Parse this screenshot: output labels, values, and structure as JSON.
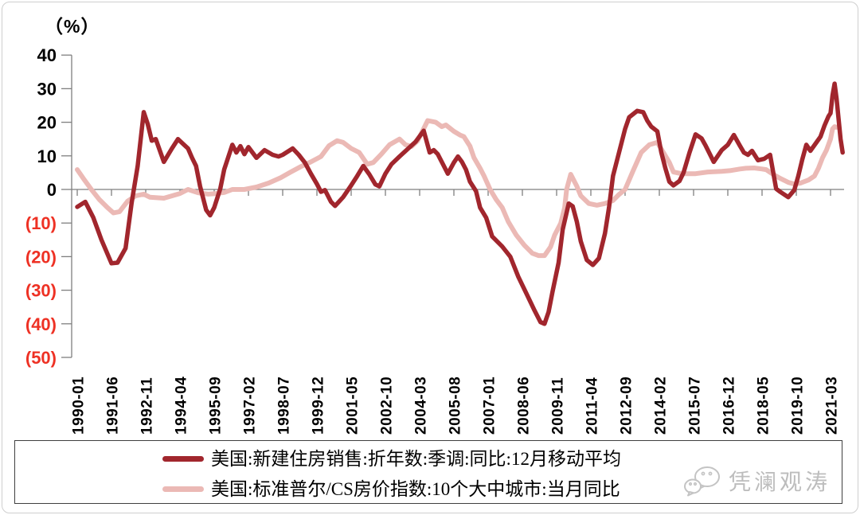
{
  "watermark": {
    "text": "凭澜观涛"
  },
  "chart_data": {
    "type": "line",
    "title": "",
    "y_axis": {
      "unit_label": "（%）",
      "max": 40,
      "min": -50,
      "ticks": [
        {
          "value": 40,
          "label": "40"
        },
        {
          "value": 30,
          "label": "30"
        },
        {
          "value": 20,
          "label": "20"
        },
        {
          "value": 10,
          "label": "10"
        },
        {
          "value": 0,
          "label": "0"
        },
        {
          "value": -10,
          "label": "(10)"
        },
        {
          "value": -20,
          "label": "(20)"
        },
        {
          "value": -30,
          "label": "(30)"
        },
        {
          "value": -40,
          "label": "(40)"
        },
        {
          "value": -50,
          "label": "(50)"
        }
      ]
    },
    "x_axis": {
      "ticks": [
        "1990-01",
        "1991-06",
        "1992-11",
        "1994-04",
        "1995-09",
        "1997-02",
        "1998-07",
        "1999-12",
        "2001-05",
        "2002-10",
        "2004-03",
        "2005-08",
        "2007-01",
        "2008-06",
        "2009-11",
        "2011-04",
        "2012-09",
        "2014-02",
        "2015-07",
        "2016-12",
        "2018-05",
        "2019-10",
        "2021-03"
      ]
    },
    "colors": {
      "axis": "#7f7f7f",
      "tick_label": "#000000",
      "negative_tick_label": "#ee3124"
    },
    "legend_position": "bottom",
    "grid": false,
    "series": [
      {
        "id": "new-home-sales",
        "label": "美国:新建住房销售:折年数:季调:同比:12月移动平均",
        "color": "#a1262d",
        "width": 5.5,
        "points": [
          [
            "1990-01",
            -5.2
          ],
          [
            "1990-05",
            -3.7
          ],
          [
            "1990-09",
            -8.4
          ],
          [
            "1991-01",
            -15
          ],
          [
            "1991-06",
            -22
          ],
          [
            "1991-09",
            -21.8
          ],
          [
            "1992-01",
            -17.5
          ],
          [
            "1992-04",
            -4
          ],
          [
            "1992-07",
            7
          ],
          [
            "1992-10",
            23
          ],
          [
            "1992-12",
            19.5
          ],
          [
            "1993-02",
            14.5
          ],
          [
            "1993-04",
            15
          ],
          [
            "1993-08",
            8.2
          ],
          [
            "1993-12",
            12.2
          ],
          [
            "1994-03",
            15
          ],
          [
            "1994-06",
            13.3
          ],
          [
            "1994-08",
            12.2
          ],
          [
            "1994-10",
            9.4
          ],
          [
            "1994-12",
            7
          ],
          [
            "1995-02",
            0.9
          ],
          [
            "1995-05",
            -6.1
          ],
          [
            "1995-07",
            -7.7
          ],
          [
            "1995-09",
            -5.4
          ],
          [
            "1995-12",
            0.2
          ],
          [
            "1996-02",
            6
          ],
          [
            "1996-06",
            13.3
          ],
          [
            "1996-08",
            11
          ],
          [
            "1996-10",
            12.9
          ],
          [
            "1996-12",
            10.5
          ],
          [
            "1997-02",
            12.6
          ],
          [
            "1997-06",
            9.4
          ],
          [
            "1997-10",
            11.7
          ],
          [
            "1998-02",
            10.3
          ],
          [
            "1998-05",
            9.8
          ],
          [
            "1998-07",
            10.3
          ],
          [
            "1998-12",
            12.2
          ],
          [
            "1999-03",
            10.3
          ],
          [
            "1999-06",
            8
          ],
          [
            "1999-09",
            4.7
          ],
          [
            "1999-12",
            1.6
          ],
          [
            "2000-02",
            -0.7
          ],
          [
            "2000-04",
            -0.2
          ],
          [
            "2000-07",
            -3.7
          ],
          [
            "2000-09",
            -4.9
          ],
          [
            "2001-01",
            -2.3
          ],
          [
            "2001-05",
            1.2
          ],
          [
            "2001-08",
            4
          ],
          [
            "2001-11",
            7
          ],
          [
            "2002-02",
            4.5
          ],
          [
            "2002-05",
            1.5
          ],
          [
            "2002-07",
            0.9
          ],
          [
            "2002-10",
            4.7
          ],
          [
            "2003-01",
            7.5
          ],
          [
            "2003-05",
            9.8
          ],
          [
            "2003-09",
            12
          ],
          [
            "2004-01",
            14.2
          ],
          [
            "2004-05",
            17.5
          ],
          [
            "2004-08",
            11
          ],
          [
            "2004-10",
            11.7
          ],
          [
            "2004-12",
            10.5
          ],
          [
            "2005-03",
            7
          ],
          [
            "2005-05",
            4.7
          ],
          [
            "2005-08",
            8
          ],
          [
            "2005-10",
            9.8
          ],
          [
            "2005-12",
            8.2
          ],
          [
            "2006-02",
            5.9
          ],
          [
            "2006-04",
            2.3
          ],
          [
            "2006-07",
            -0.5
          ],
          [
            "2006-09",
            -5.4
          ],
          [
            "2006-12",
            -8.4
          ],
          [
            "2007-03",
            -14
          ],
          [
            "2007-08",
            -17
          ],
          [
            "2007-12",
            -20
          ],
          [
            "2008-04",
            -26
          ],
          [
            "2008-08",
            -31
          ],
          [
            "2008-12",
            -36
          ],
          [
            "2009-03",
            -39.5
          ],
          [
            "2009-05",
            -40
          ],
          [
            "2009-07",
            -36.5
          ],
          [
            "2009-09",
            -30.4
          ],
          [
            "2009-12",
            -21.8
          ],
          [
            "2010-02",
            -12
          ],
          [
            "2010-05",
            -4.2
          ],
          [
            "2010-07",
            -5
          ],
          [
            "2010-09",
            -9.5
          ],
          [
            "2010-11",
            -15.5
          ],
          [
            "2011-02",
            -21
          ],
          [
            "2011-05",
            -22.5
          ],
          [
            "2011-08",
            -20.5
          ],
          [
            "2011-11",
            -13.1
          ],
          [
            "2012-01",
            -5.4
          ],
          [
            "2012-03",
            4
          ],
          [
            "2012-06",
            11
          ],
          [
            "2012-09",
            18
          ],
          [
            "2012-11",
            21.5
          ],
          [
            "2013-03",
            23.4
          ],
          [
            "2013-06",
            23
          ],
          [
            "2013-08",
            20.5
          ],
          [
            "2013-10",
            18.7
          ],
          [
            "2014-01",
            17.3
          ],
          [
            "2014-03",
            11
          ],
          [
            "2014-05",
            6.3
          ],
          [
            "2014-07",
            2.3
          ],
          [
            "2014-09",
            1.2
          ],
          [
            "2014-12",
            2.5
          ],
          [
            "2015-02",
            5
          ],
          [
            "2015-05",
            11
          ],
          [
            "2015-08",
            16.4
          ],
          [
            "2015-11",
            15.2
          ],
          [
            "2016-01",
            13
          ],
          [
            "2016-05",
            8.2
          ],
          [
            "2016-09",
            11.7
          ],
          [
            "2016-12",
            13.3
          ],
          [
            "2017-03",
            16.2
          ],
          [
            "2017-06",
            13
          ],
          [
            "2017-08",
            11
          ],
          [
            "2017-10",
            10.3
          ],
          [
            "2017-12",
            11.5
          ],
          [
            "2018-03",
            8.7
          ],
          [
            "2018-06",
            9.1
          ],
          [
            "2018-09",
            10.3
          ],
          [
            "2018-12",
            0.2
          ],
          [
            "2019-02",
            -0.7
          ],
          [
            "2019-06",
            -2.3
          ],
          [
            "2019-09",
            -0.2
          ],
          [
            "2019-11",
            4
          ],
          [
            "2020-01",
            9
          ],
          [
            "2020-03",
            13.3
          ],
          [
            "2020-05",
            11.5
          ],
          [
            "2020-08",
            14
          ],
          [
            "2020-10",
            15.7
          ],
          [
            "2020-12",
            19
          ],
          [
            "2021-02",
            21.8
          ],
          [
            "2021-03",
            22.7
          ],
          [
            "2021-04",
            28
          ],
          [
            "2021-05",
            31.5
          ],
          [
            "2021-06",
            27
          ],
          [
            "2021-07",
            21
          ],
          [
            "2021-08",
            15
          ],
          [
            "2021-09",
            11
          ]
        ]
      },
      {
        "id": "case-shiller-10city",
        "label": "美国:标准普尔/CS房价指数:10个大中城市:当月同比",
        "color": "#ebb9b5",
        "width": 6,
        "points": [
          [
            "1990-01",
            5.9
          ],
          [
            "1990-04",
            3.3
          ],
          [
            "1990-08",
            0
          ],
          [
            "1990-12",
            -3
          ],
          [
            "1991-04",
            -5.4
          ],
          [
            "1991-07",
            -7
          ],
          [
            "1991-10",
            -6.6
          ],
          [
            "1992-02",
            -3.5
          ],
          [
            "1992-06",
            -1.9
          ],
          [
            "1992-10",
            -1.4
          ],
          [
            "1993-01",
            -2.3
          ],
          [
            "1993-08",
            -2.6
          ],
          [
            "1994-04",
            -1.2
          ],
          [
            "1994-08",
            0
          ],
          [
            "1995-01",
            -1
          ],
          [
            "1995-06",
            -1.4
          ],
          [
            "1995-10",
            -1.2
          ],
          [
            "1996-02",
            -0.9
          ],
          [
            "1996-06",
            0
          ],
          [
            "1996-12",
            0
          ],
          [
            "1997-06",
            0.7
          ],
          [
            "1997-12",
            1.9
          ],
          [
            "1998-06",
            3.5
          ],
          [
            "1998-11",
            5.2
          ],
          [
            "1999-04",
            6.8
          ],
          [
            "1999-09",
            8.2
          ],
          [
            "2000-02",
            9.8
          ],
          [
            "2000-06",
            13
          ],
          [
            "2000-10",
            14.5
          ],
          [
            "2001-01",
            14
          ],
          [
            "2001-05",
            12.2
          ],
          [
            "2001-09",
            11
          ],
          [
            "2002-01",
            7.5
          ],
          [
            "2002-04",
            8
          ],
          [
            "2002-08",
            10.5
          ],
          [
            "2002-12",
            13.3
          ],
          [
            "2003-05",
            15
          ],
          [
            "2003-08",
            13.3
          ],
          [
            "2003-11",
            12.8
          ],
          [
            "2004-02",
            14.5
          ],
          [
            "2004-07",
            20.5
          ],
          [
            "2004-11",
            20
          ],
          [
            "2005-02",
            18.7
          ],
          [
            "2005-04",
            19.2
          ],
          [
            "2005-08",
            17.3
          ],
          [
            "2005-11",
            16.2
          ],
          [
            "2006-01",
            15.7
          ],
          [
            "2006-04",
            12.9
          ],
          [
            "2006-06",
            9.4
          ],
          [
            "2006-09",
            6.3
          ],
          [
            "2006-11",
            4
          ],
          [
            "2007-02",
            0
          ],
          [
            "2007-05",
            -3
          ],
          [
            "2007-08",
            -5.4
          ],
          [
            "2007-11",
            -9.6
          ],
          [
            "2008-03",
            -13.6
          ],
          [
            "2008-07",
            -16.6
          ],
          [
            "2008-11",
            -19
          ],
          [
            "2009-02",
            -19.7
          ],
          [
            "2009-05",
            -19.7
          ],
          [
            "2009-08",
            -17.1
          ],
          [
            "2009-10",
            -13.6
          ],
          [
            "2010-01",
            -10.1
          ],
          [
            "2010-03",
            -5.4
          ],
          [
            "2010-04",
            0
          ],
          [
            "2010-06",
            4.5
          ],
          [
            "2010-09",
            1
          ],
          [
            "2010-11",
            -1.9
          ],
          [
            "2011-03",
            -4.2
          ],
          [
            "2011-07",
            -4.7
          ],
          [
            "2011-11",
            -4.2
          ],
          [
            "2012-03",
            -3.3
          ],
          [
            "2012-06",
            -1.5
          ],
          [
            "2012-09",
            0
          ],
          [
            "2013-01",
            5.6
          ],
          [
            "2013-05",
            11
          ],
          [
            "2013-09",
            13.3
          ],
          [
            "2014-01",
            14
          ],
          [
            "2014-04",
            11
          ],
          [
            "2014-07",
            8
          ],
          [
            "2014-09",
            5.2
          ],
          [
            "2015-01",
            4.7
          ],
          [
            "2015-08",
            4.7
          ],
          [
            "2016-02",
            5.2
          ],
          [
            "2016-09",
            5.4
          ],
          [
            "2017-01",
            5.6
          ],
          [
            "2017-06",
            6.1
          ],
          [
            "2017-09",
            6.3
          ],
          [
            "2018-01",
            6.4
          ],
          [
            "2018-05",
            6.1
          ],
          [
            "2018-07",
            5.9
          ],
          [
            "2018-10",
            4.7
          ],
          [
            "2019-02",
            3.3
          ],
          [
            "2019-06",
            2.1
          ],
          [
            "2019-09",
            1.6
          ],
          [
            "2019-12",
            1.9
          ],
          [
            "2020-01",
            2.1
          ],
          [
            "2020-04",
            2.8
          ],
          [
            "2020-07",
            4
          ],
          [
            "2020-09",
            6.3
          ],
          [
            "2020-11",
            9.4
          ],
          [
            "2021-01",
            11.7
          ],
          [
            "2021-03",
            15
          ],
          [
            "2021-04",
            18
          ],
          [
            "2021-05",
            18.7
          ],
          [
            "2021-06",
            18.5
          ]
        ]
      }
    ]
  }
}
